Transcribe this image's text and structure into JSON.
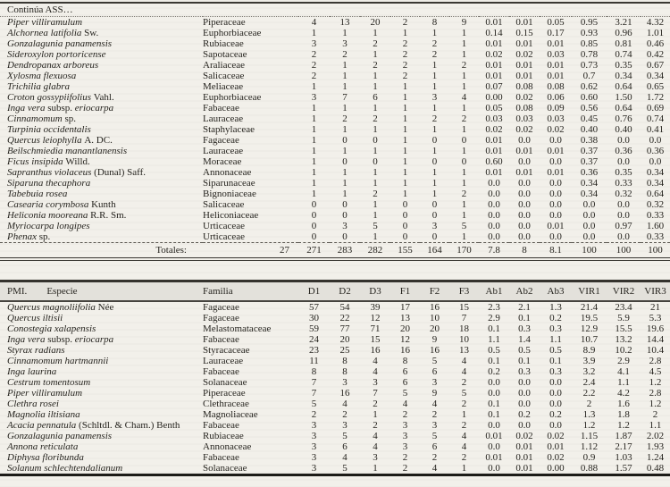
{
  "table1": {
    "continua_label": "Continúa ASS…",
    "totals_label": "Totales:",
    "totals_count": "27",
    "totals_values": [
      "271",
      "283",
      "282",
      "155",
      "164",
      "170",
      "7.8",
      "8",
      "8.1",
      "100",
      "100",
      "100"
    ],
    "rows": [
      {
        "name": [
          "Piper villiramulum"
        ],
        "family": "Piperaceae",
        "values": [
          "4",
          "13",
          "20",
          "2",
          "8",
          "9",
          "0.01",
          "0.01",
          "0.05",
          "0.95",
          "3.21",
          "4.32"
        ]
      },
      {
        "name": [
          "Alchornea latifolia ",
          "Sw."
        ],
        "family": "Euphorbiaceae",
        "values": [
          "1",
          "1",
          "1",
          "1",
          "1",
          "1",
          "0.14",
          "0.15",
          "0.17",
          "0.93",
          "0.96",
          "1.01"
        ]
      },
      {
        "name": [
          "Gonzalagunia panamensis"
        ],
        "family": "Rubiaceae",
        "values": [
          "3",
          "3",
          "2",
          "2",
          "2",
          "1",
          "0.01",
          "0.01",
          "0.01",
          "0.85",
          "0.81",
          "0.46"
        ]
      },
      {
        "name": [
          "Sideroxylon portoricense"
        ],
        "family": "Sapotaceae",
        "values": [
          "2",
          "2",
          "1",
          "2",
          "2",
          "1",
          "0.02",
          "0.02",
          "0.03",
          "0.78",
          "0.74",
          "0.42"
        ]
      },
      {
        "name": [
          "Dendropanax arboreus"
        ],
        "family": "Araliaceae",
        "values": [
          "2",
          "1",
          "2",
          "2",
          "1",
          "2",
          "0.01",
          "0.01",
          "0.01",
          "0.73",
          "0.35",
          "0.67"
        ]
      },
      {
        "name": [
          "Xylosma flexuosa"
        ],
        "family": "Salicaceae",
        "values": [
          "2",
          "1",
          "1",
          "2",
          "1",
          "1",
          "0.01",
          "0.01",
          "0.01",
          "0.7",
          "0.34",
          "0.34"
        ]
      },
      {
        "name": [
          "Trichilia glabra"
        ],
        "family": "Meliaceae",
        "values": [
          "1",
          "1",
          "1",
          "1",
          "1",
          "1",
          "0.07",
          "0.08",
          "0.08",
          "0.62",
          "0.64",
          "0.65"
        ]
      },
      {
        "name": [
          "Croton gossypiifolius ",
          "Vahl."
        ],
        "family": "Euphorbiaceae",
        "values": [
          "3",
          "7",
          "6",
          "1",
          "3",
          "4",
          "0.00",
          "0.02",
          "0.06",
          "0.60",
          "1.50",
          "1.72"
        ]
      },
      {
        "name": [
          "Inga vera ",
          "subsp. ",
          "eriocarpa"
        ],
        "family": "Fabaceae",
        "values": [
          "1",
          "1",
          "1",
          "1",
          "1",
          "1",
          "0.05",
          "0.08",
          "0.09",
          "0.56",
          "0.64",
          "0.69"
        ]
      },
      {
        "name": [
          "Cinnamomum ",
          "sp."
        ],
        "family": "Lauraceae",
        "values": [
          "1",
          "2",
          "2",
          "1",
          "2",
          "2",
          "0.03",
          "0.03",
          "0.03",
          "0.45",
          "0.76",
          "0.74"
        ]
      },
      {
        "name": [
          "Turpinia occidentalis"
        ],
        "family": "Staphylaceae",
        "values": [
          "1",
          "1",
          "1",
          "1",
          "1",
          "1",
          "0.02",
          "0.02",
          "0.02",
          "0.40",
          "0.40",
          "0.41"
        ]
      },
      {
        "name": [
          "Quercus leiophylla ",
          "A. DC."
        ],
        "family": "Fagaceae",
        "values": [
          "1",
          "0",
          "0",
          "1",
          "0",
          "0",
          "0.01",
          "0.0",
          "0.0",
          "0.38",
          "0.0",
          "0.0"
        ]
      },
      {
        "name": [
          "Beilschmiedia manantlanensis"
        ],
        "family": "Lauraceae",
        "values": [
          "1",
          "1",
          "1",
          "1",
          "1",
          "1",
          "0.01",
          "0.01",
          "0.01",
          "0.37",
          "0.36",
          "0.36"
        ]
      },
      {
        "name": [
          "Ficus insipida ",
          "Willd."
        ],
        "family": "Moraceae",
        "values": [
          "1",
          "0",
          "0",
          "1",
          "0",
          "0",
          "0.60",
          "0.0",
          "0.0",
          "0.37",
          "0.0",
          "0.0"
        ]
      },
      {
        "name": [
          "Sapranthus violaceus ",
          "(Dunal) Saff."
        ],
        "family": "Annonaceae",
        "values": [
          "1",
          "1",
          "1",
          "1",
          "1",
          "1",
          "0.01",
          "0.01",
          "0.01",
          "0.36",
          "0.35",
          "0.34"
        ]
      },
      {
        "name": [
          "Siparuna thecaphora"
        ],
        "family": "Siparunaceae",
        "values": [
          "1",
          "1",
          "1",
          "1",
          "1",
          "1",
          "0.0",
          "0.0",
          "0.0",
          "0.34",
          "0.33",
          "0.34"
        ]
      },
      {
        "name": [
          "Tabebuia rosea"
        ],
        "family": "Bignoniaceae",
        "values": [
          "1",
          "1",
          "2",
          "1",
          "1",
          "2",
          "0.0",
          "0.0",
          "0.0",
          "0.34",
          "0.32",
          "0.64"
        ]
      },
      {
        "name": [
          "Casearia corymbosa ",
          "Kunth"
        ],
        "family": "Salicaceae",
        "values": [
          "0",
          "0",
          "1",
          "0",
          "0",
          "1",
          "0.0",
          "0.0",
          "0.0",
          "0.0",
          "0.0",
          "0.32"
        ]
      },
      {
        "name": [
          "Heliconia mooreana ",
          "R.R. Sm."
        ],
        "family": "Heliconiaceae",
        "values": [
          "0",
          "0",
          "1",
          "0",
          "0",
          "1",
          "0.0",
          "0.0",
          "0.0",
          "0.0",
          "0.0",
          "0.33"
        ]
      },
      {
        "name": [
          "Myriocarpa longipes"
        ],
        "family": "Urticaceae",
        "values": [
          "0",
          "3",
          "5",
          "0",
          "3",
          "5",
          "0.0",
          "0.0",
          "0.01",
          "0.0",
          "0.97",
          "1.60"
        ]
      },
      {
        "name": [
          "Phenax ",
          "sp."
        ],
        "family": "Urticaceae",
        "values": [
          "0",
          "0",
          "1",
          "0",
          "0",
          "1",
          "0.0",
          "0.0",
          "0.0",
          "0.0",
          "0.0",
          "0.33"
        ]
      }
    ]
  },
  "table2": {
    "header": {
      "pmi": "PMI.",
      "especie": "Especie",
      "familia": "Familia",
      "cols": [
        "D1",
        "D2",
        "D3",
        "F1",
        "F2",
        "F3",
        "Ab1",
        "Ab2",
        "Ab3",
        "VIR1",
        "VIR2",
        "VIR3"
      ]
    },
    "rows": [
      {
        "name": [
          "Quercus magnoliifolia ",
          "Née"
        ],
        "family": "Fagaceae",
        "values": [
          "57",
          "54",
          "39",
          "17",
          "16",
          "15",
          "2.3",
          "2.1",
          "1.3",
          "21.4",
          "23.4",
          "21"
        ]
      },
      {
        "name": [
          "Quercus iltisii"
        ],
        "family": "Fagaceae",
        "values": [
          "30",
          "22",
          "12",
          "13",
          "10",
          "7",
          "2.9",
          "0.1",
          "0.2",
          "19.5",
          "5.9",
          "5.3"
        ]
      },
      {
        "name": [
          "Conostegia xalapensis"
        ],
        "family": "Melastomataceae",
        "values": [
          "59",
          "77",
          "71",
          "20",
          "20",
          "18",
          "0.1",
          "0.3",
          "0.3",
          "12.9",
          "15.5",
          "19.6"
        ]
      },
      {
        "name": [
          "Inga vera ",
          "subsp. ",
          "eriocarpa"
        ],
        "family": "Fabaceae",
        "values": [
          "24",
          "20",
          "15",
          "12",
          "9",
          "10",
          "1.1",
          "1.4",
          "1.1",
          "10.7",
          "13.2",
          "14.4"
        ]
      },
      {
        "name": [
          "Styrax radians"
        ],
        "family": "Styracaceae",
        "values": [
          "23",
          "25",
          "16",
          "16",
          "16",
          "13",
          "0.5",
          "0.5",
          "0.5",
          "8.9",
          "10.2",
          "10.4"
        ]
      },
      {
        "name": [
          "Cinnamomum hartmannii"
        ],
        "family": "Lauraceae",
        "values": [
          "11",
          "8",
          "4",
          "8",
          "5",
          "4",
          "0.1",
          "0.1",
          "0.1",
          "3.9",
          "2.9",
          "2.8"
        ]
      },
      {
        "name": [
          "Inga laurina"
        ],
        "family": "Fabaceae",
        "values": [
          "8",
          "8",
          "4",
          "6",
          "6",
          "4",
          "0.2",
          "0.3",
          "0.3",
          "3.2",
          "4.1",
          "4.5"
        ]
      },
      {
        "name": [
          "Cestrum tomentosum"
        ],
        "family": "Solanaceae",
        "values": [
          "7",
          "3",
          "3",
          "6",
          "3",
          "2",
          "0.0",
          "0.0",
          "0.0",
          "2.4",
          "1.1",
          "1.2"
        ]
      },
      {
        "name": [
          "Piper villiramulum"
        ],
        "family": "Piperaceae",
        "values": [
          "7",
          "16",
          "7",
          "5",
          "9",
          "5",
          "0.0",
          "0.0",
          "0.0",
          "2.2",
          "4.2",
          "2.8"
        ]
      },
      {
        "name": [
          "Clethra rosei"
        ],
        "family": "Clethraceae",
        "values": [
          "5",
          "4",
          "2",
          "4",
          "4",
          "2",
          "0.1",
          "0.0",
          "0.0",
          "2",
          "1.6",
          "1.2"
        ]
      },
      {
        "name": [
          "Magnolia iltisiana"
        ],
        "family": "Magnoliaceae",
        "values": [
          "2",
          "2",
          "1",
          "2",
          "2",
          "1",
          "0.1",
          "0.2",
          "0.2",
          "1.3",
          "1.8",
          "2"
        ]
      },
      {
        "name": [
          "Acacia pennatula ",
          "(Schltdl. & Cham.) Benth"
        ],
        "family": "Fabaceae",
        "values": [
          "3",
          "3",
          "2",
          "3",
          "3",
          "2",
          "0.0",
          "0.0",
          "0.0",
          "1.2",
          "1.2",
          "1.1"
        ]
      },
      {
        "name": [
          "Gonzalagunia panamensis"
        ],
        "family": "Rubiaceae",
        "values": [
          "3",
          "5",
          "4",
          "3",
          "5",
          "4",
          "0.01",
          "0.02",
          "0.02",
          "1.15",
          "1.87",
          "2.02"
        ]
      },
      {
        "name": [
          "Annona reticulata"
        ],
        "family": "Annonaceae",
        "values": [
          "3",
          "6",
          "4",
          "3",
          "6",
          "4",
          "0.0",
          "0.01",
          "0.01",
          "1.12",
          "2.17",
          "1.93"
        ]
      },
      {
        "name": [
          "Diphysa floribunda"
        ],
        "family": "Fabaceae",
        "values": [
          "3",
          "4",
          "3",
          "2",
          "2",
          "2",
          "0.01",
          "0.01",
          "0.02",
          "0.9",
          "1.03",
          "1.24"
        ]
      },
      {
        "name": [
          "Solanum schlechtendalianum"
        ],
        "family": "Solanaceae",
        "values": [
          "3",
          "5",
          "1",
          "2",
          "4",
          "1",
          "0.0",
          "0.01",
          "0.00",
          "0.88",
          "1.57",
          "0.48"
        ]
      }
    ]
  }
}
